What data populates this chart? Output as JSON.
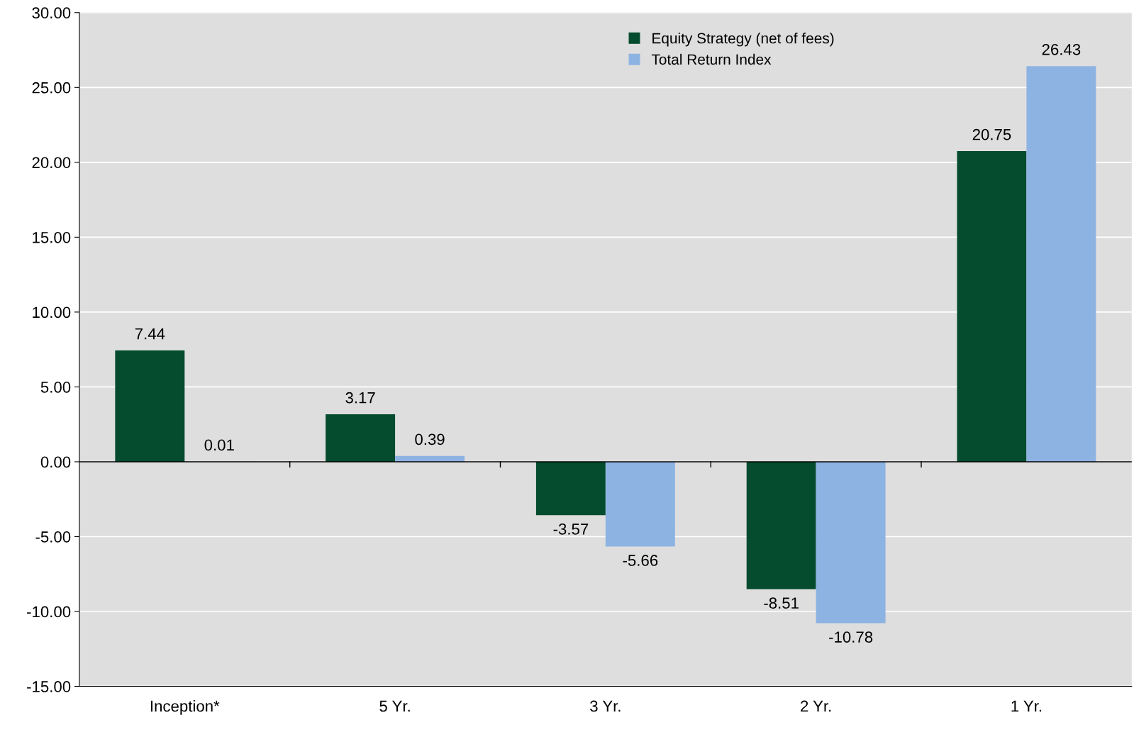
{
  "chart_data": {
    "type": "bar",
    "categories": [
      "Inception*",
      "5 Yr.",
      "3 Yr.",
      "2 Yr.",
      "1 Yr."
    ],
    "series": [
      {
        "name": "Equity Strategy (net of fees)",
        "color": "#054b2e",
        "values": [
          7.44,
          3.17,
          -3.57,
          -8.51,
          20.75
        ]
      },
      {
        "name": "Total Return Index",
        "color": "#8db3e2",
        "values": [
          0.01,
          0.39,
          -5.66,
          -10.78,
          26.43
        ]
      }
    ],
    "ylim": [
      -15,
      30
    ],
    "yticks": [
      {
        "value": -15,
        "label": "-15.00"
      },
      {
        "value": -10,
        "label": "-10.00"
      },
      {
        "value": -5,
        "label": "-5.00"
      },
      {
        "value": 0,
        "label": "0.00"
      },
      {
        "value": 5,
        "label": "5.00"
      },
      {
        "value": 10,
        "label": "10.00"
      },
      {
        "value": 15,
        "label": "15.00"
      },
      {
        "value": 20,
        "label": "20.00"
      },
      {
        "value": 25,
        "label": "25.00"
      },
      {
        "value": 30,
        "label": "30.00"
      }
    ],
    "grid": "y",
    "legend": "top",
    "data_labels": true
  }
}
